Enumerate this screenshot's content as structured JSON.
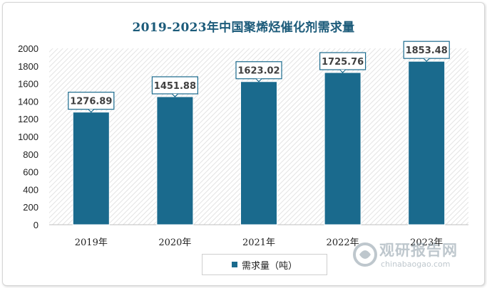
{
  "chart_data": {
    "type": "bar",
    "title": "2019-2023年中国聚烯烃催化剂需求量",
    "categories": [
      "2019年",
      "2020年",
      "2021年",
      "2022年",
      "2023年"
    ],
    "series": [
      {
        "name": "需求量（吨）",
        "values": [
          1276.89,
          1451.88,
          1623.02,
          1725.76,
          1853.48
        ]
      }
    ],
    "data_labels": [
      "1276.89",
      "1451.88",
      "1623.02",
      "1725.76",
      "1853.48"
    ],
    "y_ticks": [
      "0",
      "200",
      "400",
      "600",
      "800",
      "1000",
      "1200",
      "1400",
      "1600",
      "1800",
      "2000"
    ],
    "ylim": [
      0,
      2000
    ],
    "xlabel": "",
    "ylabel": "",
    "grid": false,
    "legend_position": "bottom",
    "bar_color": "#1a6a8d"
  },
  "watermark": {
    "name": "观研报告网",
    "url": "chinabaogao.com"
  }
}
